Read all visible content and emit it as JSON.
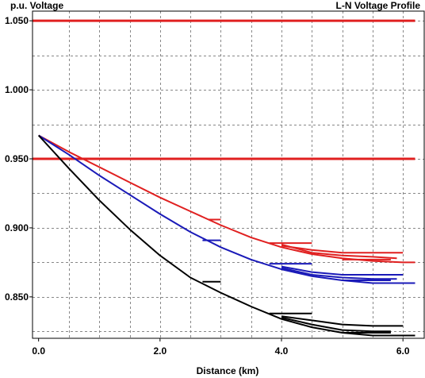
{
  "chart_data": {
    "type": "line",
    "title": "L-N Voltage Profile",
    "ylabel": "p.u. Voltage",
    "xlabel": "Distance (km)",
    "xlim": [
      -0.1,
      6.35
    ],
    "ylim": [
      0.82,
      1.057
    ],
    "grid": true,
    "xticks": [
      {
        "value": 0.0,
        "label": "0.0"
      },
      {
        "value": 2.0,
        "label": "2.0"
      },
      {
        "value": 4.0,
        "label": "4.0"
      },
      {
        "value": 6.0,
        "label": "6.0"
      }
    ],
    "yticks": [
      {
        "value": 1.05,
        "label": "1.050"
      },
      {
        "value": 1.0,
        "label": "1.000"
      },
      {
        "value": 0.95,
        "label": "0.950"
      },
      {
        "value": 0.9,
        "label": "0.900"
      },
      {
        "value": 0.85,
        "label": "0.850"
      }
    ],
    "limits": [
      {
        "value": 1.05,
        "x": [
          -0.1,
          6.2
        ],
        "color": "#e02020"
      },
      {
        "value": 0.95,
        "x": [
          -0.1,
          6.2
        ],
        "color": "#e02020"
      }
    ],
    "series": [
      {
        "color": "#e02020",
        "points": [
          [
            0.0,
            0.967
          ],
          [
            0.5,
            0.955
          ],
          [
            1.0,
            0.944
          ],
          [
            1.5,
            0.933
          ],
          [
            2.0,
            0.922
          ],
          [
            2.5,
            0.912
          ],
          [
            3.0,
            0.902
          ],
          [
            3.5,
            0.893
          ],
          [
            4.0,
            0.886
          ],
          [
            4.5,
            0.881
          ],
          [
            5.0,
            0.878
          ],
          [
            5.5,
            0.876
          ],
          [
            6.0,
            0.875
          ],
          [
            6.2,
            0.875
          ]
        ]
      },
      {
        "color": "#e02020",
        "points": [
          [
            4.0,
            0.888
          ],
          [
            4.5,
            0.882
          ],
          [
            5.0,
            0.88
          ],
          [
            5.5,
            0.879
          ],
          [
            5.9,
            0.878
          ]
        ]
      },
      {
        "color": "#e02020",
        "points": [
          [
            4.0,
            0.887
          ],
          [
            4.5,
            0.884
          ],
          [
            5.0,
            0.882
          ],
          [
            5.5,
            0.882
          ],
          [
            6.0,
            0.882
          ]
        ]
      },
      {
        "color": "#e02020",
        "points": [
          [
            2.8,
            0.906
          ],
          [
            3.0,
            0.906
          ]
        ]
      },
      {
        "color": "#e02020",
        "points": [
          [
            3.8,
            0.889
          ],
          [
            4.5,
            0.889
          ]
        ]
      },
      {
        "color": "#e02020",
        "points": [
          [
            5.0,
            0.877
          ],
          [
            5.8,
            0.877
          ]
        ]
      },
      {
        "color": "#1a1ab8",
        "points": [
          [
            0.0,
            0.967
          ],
          [
            0.5,
            0.953
          ],
          [
            1.0,
            0.938
          ],
          [
            1.5,
            0.924
          ],
          [
            2.0,
            0.91
          ],
          [
            2.5,
            0.897
          ],
          [
            3.0,
            0.886
          ],
          [
            3.5,
            0.877
          ],
          [
            4.0,
            0.87
          ],
          [
            4.5,
            0.865
          ],
          [
            5.0,
            0.862
          ],
          [
            5.5,
            0.86
          ],
          [
            6.0,
            0.86
          ],
          [
            6.2,
            0.86
          ]
        ]
      },
      {
        "color": "#1a1ab8",
        "points": [
          [
            4.0,
            0.872
          ],
          [
            4.5,
            0.868
          ],
          [
            5.0,
            0.866
          ],
          [
            5.5,
            0.866
          ],
          [
            6.0,
            0.866
          ]
        ]
      },
      {
        "color": "#1a1ab8",
        "points": [
          [
            4.0,
            0.871
          ],
          [
            4.5,
            0.866
          ],
          [
            5.0,
            0.864
          ],
          [
            5.5,
            0.863
          ],
          [
            5.9,
            0.863
          ]
        ]
      },
      {
        "color": "#1a1ab8",
        "points": [
          [
            2.7,
            0.891
          ],
          [
            3.0,
            0.891
          ]
        ]
      },
      {
        "color": "#1a1ab8",
        "points": [
          [
            3.8,
            0.874
          ],
          [
            4.5,
            0.874
          ]
        ]
      },
      {
        "color": "#1a1ab8",
        "points": [
          [
            5.0,
            0.862
          ],
          [
            5.8,
            0.862
          ]
        ]
      },
      {
        "color": "#000000",
        "points": [
          [
            0.0,
            0.967
          ],
          [
            0.5,
            0.943
          ],
          [
            1.0,
            0.92
          ],
          [
            1.5,
            0.899
          ],
          [
            2.0,
            0.88
          ],
          [
            2.5,
            0.864
          ],
          [
            3.0,
            0.853
          ],
          [
            3.5,
            0.843
          ],
          [
            4.0,
            0.834
          ],
          [
            4.5,
            0.828
          ],
          [
            5.0,
            0.824
          ],
          [
            5.5,
            0.822
          ],
          [
            6.0,
            0.822
          ],
          [
            6.2,
            0.822
          ]
        ]
      },
      {
        "color": "#000000",
        "points": [
          [
            4.0,
            0.836
          ],
          [
            4.5,
            0.833
          ],
          [
            5.0,
            0.83
          ],
          [
            5.5,
            0.829
          ],
          [
            6.0,
            0.829
          ]
        ]
      },
      {
        "color": "#000000",
        "points": [
          [
            4.0,
            0.835
          ],
          [
            4.5,
            0.83
          ],
          [
            5.0,
            0.826
          ],
          [
            5.5,
            0.825
          ],
          [
            5.8,
            0.825
          ]
        ]
      },
      {
        "color": "#000000",
        "points": [
          [
            2.7,
            0.861
          ],
          [
            3.0,
            0.861
          ]
        ]
      },
      {
        "color": "#000000",
        "points": [
          [
            3.8,
            0.838
          ],
          [
            4.5,
            0.838
          ]
        ]
      },
      {
        "color": "#000000",
        "points": [
          [
            5.0,
            0.824
          ],
          [
            5.8,
            0.824
          ]
        ]
      }
    ]
  }
}
